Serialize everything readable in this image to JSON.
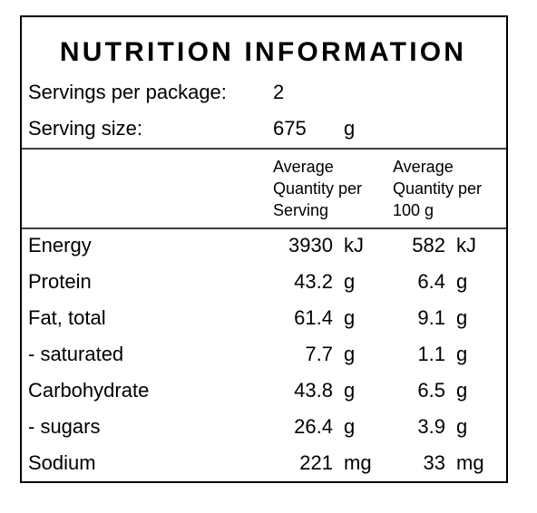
{
  "title": "NUTRITION INFORMATION",
  "servings_per_package": {
    "label": "Servings per package:",
    "value": "2"
  },
  "serving_size": {
    "label": "Serving size:",
    "value": "675",
    "unit": "g"
  },
  "columns": {
    "per_serving": [
      "Average",
      "Quantity per",
      "Serving"
    ],
    "per_100g": [
      "Average",
      "Quantity per",
      "100 g"
    ]
  },
  "rows": [
    {
      "name": "Energy",
      "per_serving": "3930",
      "per_serving_unit": "kJ",
      "per_100g": "582",
      "per_100g_unit": "kJ"
    },
    {
      "name": "Protein",
      "per_serving": "43.2",
      "per_serving_unit": "g",
      "per_100g": "6.4",
      "per_100g_unit": "g"
    },
    {
      "name": "Fat, total",
      "per_serving": "61.4",
      "per_serving_unit": "g",
      "per_100g": "9.1",
      "per_100g_unit": "g"
    },
    {
      "name": "- saturated",
      "per_serving": "7.7",
      "per_serving_unit": "g",
      "per_100g": "1.1",
      "per_100g_unit": "g"
    },
    {
      "name": "Carbohydrate",
      "per_serving": "43.8",
      "per_serving_unit": "g",
      "per_100g": "6.5",
      "per_100g_unit": "g"
    },
    {
      "name": "- sugars",
      "per_serving": "26.4",
      "per_serving_unit": "g",
      "per_100g": "3.9",
      "per_100g_unit": "g"
    },
    {
      "name": "Sodium",
      "per_serving": "221",
      "per_serving_unit": "mg",
      "per_100g": "33",
      "per_100g_unit": "mg"
    }
  ]
}
